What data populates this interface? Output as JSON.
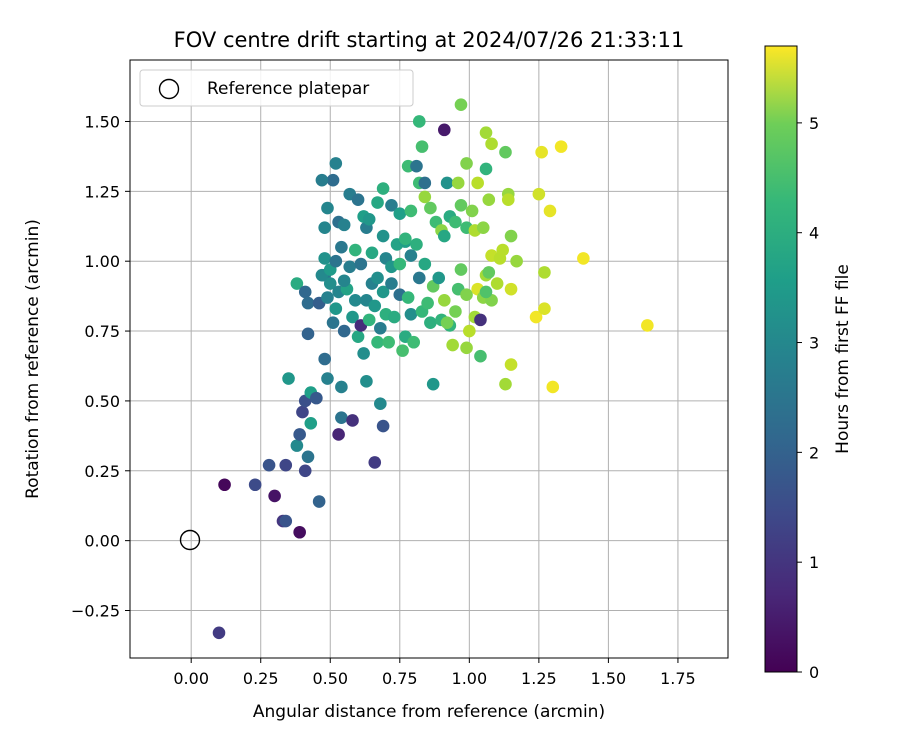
{
  "chart_data": {
    "type": "scatter",
    "title": "FOV centre drift starting at 2024/07/26 21:33:11",
    "xlabel": "Angular distance from reference (arcmin)",
    "ylabel": "Rotation from reference (arcmin)",
    "xlim": [
      -0.22,
      1.93
    ],
    "ylim": [
      -0.42,
      1.72
    ],
    "xticks": [
      "0.00",
      "0.25",
      "0.50",
      "0.75",
      "1.00",
      "1.25",
      "1.50",
      "1.75"
    ],
    "yticks": [
      "−0.25",
      "0.00",
      "0.25",
      "0.50",
      "0.75",
      "1.00",
      "1.25",
      "1.50"
    ],
    "grid": true,
    "legend": {
      "placement": "top-left",
      "entries": [
        "Reference platepar"
      ]
    },
    "reference_point": {
      "x": 0.0,
      "y": 0.0,
      "marker": "open circle"
    },
    "colorbar": {
      "label": "Hours from first FF file",
      "range": [
        0,
        5.7
      ],
      "ticks": [
        "0",
        "1",
        "2",
        "3",
        "4",
        "5"
      ],
      "colormap": "viridis"
    },
    "points": [
      [
        0.1,
        -0.33,
        1.0
      ],
      [
        0.12,
        0.2,
        0.1
      ],
      [
        0.23,
        0.2,
        1.3
      ],
      [
        0.28,
        0.27,
        1.5
      ],
      [
        0.3,
        0.16,
        0.3
      ],
      [
        0.33,
        0.07,
        0.9
      ],
      [
        0.34,
        0.07,
        1.5
      ],
      [
        0.34,
        0.27,
        1.2
      ],
      [
        0.39,
        0.03,
        0.2
      ],
      [
        0.41,
        0.25,
        1.2
      ],
      [
        0.42,
        0.3,
        2.2
      ],
      [
        0.38,
        0.34,
        2.7
      ],
      [
        0.39,
        0.38,
        1.6
      ],
      [
        0.4,
        0.46,
        1.2
      ],
      [
        0.41,
        0.5,
        1.4
      ],
      [
        0.43,
        0.42,
        3.2
      ],
      [
        0.43,
        0.53,
        3.2
      ],
      [
        0.45,
        0.51,
        1.6
      ],
      [
        0.46,
        0.14,
        1.8
      ],
      [
        0.35,
        0.58,
        3.0
      ],
      [
        0.48,
        0.65,
        2.0
      ],
      [
        0.49,
        0.58,
        2.5
      ],
      [
        0.53,
        0.38,
        0.6
      ],
      [
        0.54,
        0.44,
        2.2
      ],
      [
        0.54,
        0.55,
        2.5
      ],
      [
        0.58,
        0.43,
        0.8
      ],
      [
        0.63,
        0.57,
        2.8
      ],
      [
        0.66,
        0.28,
        1.0
      ],
      [
        0.68,
        0.49,
        2.7
      ],
      [
        0.69,
        0.41,
        1.5
      ],
      [
        0.42,
        0.74,
        1.8
      ],
      [
        0.38,
        0.92,
        3.5
      ],
      [
        0.41,
        0.89,
        1.9
      ],
      [
        0.42,
        0.85,
        2.0
      ],
      [
        0.46,
        0.85,
        1.7
      ],
      [
        0.48,
        0.95,
        2.3
      ],
      [
        0.49,
        0.87,
        2.5
      ],
      [
        0.5,
        0.92,
        2.8
      ],
      [
        0.51,
        0.78,
        2.2
      ],
      [
        0.52,
        0.83,
        3.0
      ],
      [
        0.53,
        0.89,
        2.6
      ],
      [
        0.55,
        0.75,
        1.9
      ],
      [
        0.56,
        0.9,
        3.3
      ],
      [
        0.58,
        0.8,
        3.0
      ],
      [
        0.59,
        0.86,
        2.7
      ],
      [
        0.6,
        0.73,
        3.4
      ],
      [
        0.61,
        0.77,
        0.7
      ],
      [
        0.62,
        0.67,
        2.8
      ],
      [
        0.63,
        0.86,
        2.6
      ],
      [
        0.64,
        0.79,
        3.7
      ],
      [
        0.65,
        0.92,
        2.5
      ],
      [
        0.66,
        0.84,
        3.0
      ],
      [
        0.67,
        0.71,
        3.8
      ],
      [
        0.68,
        0.76,
        2.4
      ],
      [
        0.69,
        0.89,
        3.0
      ],
      [
        0.7,
        0.81,
        3.6
      ],
      [
        0.71,
        0.71,
        3.9
      ],
      [
        0.72,
        0.92,
        2.4
      ],
      [
        0.73,
        0.8,
        3.5
      ],
      [
        0.75,
        0.88,
        2.1
      ],
      [
        0.76,
        0.68,
        4.0
      ],
      [
        0.77,
        0.73,
        3.5
      ],
      [
        0.78,
        0.87,
        3.8
      ],
      [
        0.79,
        0.81,
        2.8
      ],
      [
        0.8,
        0.71,
        3.9
      ],
      [
        0.82,
        0.94,
        2.3
      ],
      [
        0.83,
        0.82,
        3.8
      ],
      [
        0.84,
        0.99,
        3.4
      ],
      [
        0.86,
        0.78,
        3.6
      ],
      [
        0.87,
        0.56,
        3.0
      ],
      [
        0.47,
        0.95,
        2.7
      ],
      [
        0.48,
        1.01,
        2.9
      ],
      [
        0.5,
        0.97,
        3.1
      ],
      [
        0.52,
        1.0,
        2.2
      ],
      [
        0.54,
        1.05,
        2.3
      ],
      [
        0.55,
        0.93,
        2.6
      ],
      [
        0.57,
        0.98,
        2.4
      ],
      [
        0.59,
        1.04,
        3.7
      ],
      [
        0.61,
        0.99,
        2.2
      ],
      [
        0.63,
        1.12,
        2.4
      ],
      [
        0.65,
        1.03,
        3.4
      ],
      [
        0.67,
        0.94,
        2.8
      ],
      [
        0.69,
        1.09,
        2.9
      ],
      [
        0.7,
        1.01,
        2.6
      ],
      [
        0.72,
        0.98,
        3.0
      ],
      [
        0.74,
        1.06,
        3.3
      ],
      [
        0.75,
        0.99,
        3.8
      ],
      [
        0.77,
        1.07,
        3.2
      ],
      [
        0.79,
        1.02,
        2.5
      ],
      [
        0.81,
        1.06,
        3.6
      ],
      [
        0.48,
        1.12,
        2.6
      ],
      [
        0.49,
        1.19,
        2.6
      ],
      [
        0.51,
        1.29,
        2.0
      ],
      [
        0.53,
        1.14,
        2.1
      ],
      [
        0.55,
        1.13,
        2.5
      ],
      [
        0.57,
        1.24,
        2.4
      ],
      [
        0.6,
        1.22,
        2.2
      ],
      [
        0.62,
        1.16,
        3.2
      ],
      [
        0.64,
        1.15,
        3.0
      ],
      [
        0.67,
        1.21,
        3.4
      ],
      [
        0.69,
        1.26,
        3.6
      ],
      [
        0.72,
        1.2,
        2.4
      ],
      [
        0.75,
        1.17,
        3.2
      ],
      [
        0.77,
        1.08,
        3.7
      ],
      [
        0.79,
        1.18,
        3.9
      ],
      [
        0.47,
        1.29,
        2.4
      ],
      [
        0.52,
        1.35,
        2.5
      ],
      [
        0.78,
        1.34,
        3.9
      ],
      [
        0.81,
        1.34,
        2.2
      ],
      [
        0.82,
        1.28,
        3.9
      ],
      [
        0.83,
        1.41,
        4.0
      ],
      [
        0.82,
        1.5,
        3.8
      ],
      [
        0.84,
        1.28,
        2.1
      ],
      [
        0.91,
        1.47,
        0.4
      ],
      [
        0.92,
        1.28,
        2.9
      ],
      [
        0.97,
        1.56,
        4.5
      ],
      [
        0.96,
        1.28,
        4.8
      ],
      [
        0.99,
        1.35,
        4.6
      ],
      [
        1.03,
        1.28,
        5.1
      ],
      [
        1.06,
        1.46,
        4.9
      ],
      [
        1.08,
        1.42,
        5.0
      ],
      [
        1.13,
        1.39,
        4.3
      ],
      [
        1.06,
        1.33,
        3.7
      ],
      [
        1.26,
        1.39,
        5.5
      ],
      [
        1.33,
        1.41,
        5.6
      ],
      [
        0.84,
        1.23,
        4.8
      ],
      [
        0.86,
        1.19,
        4.3
      ],
      [
        0.88,
        1.14,
        3.9
      ],
      [
        0.9,
        1.11,
        4.7
      ],
      [
        0.91,
        1.09,
        3.4
      ],
      [
        0.93,
        1.16,
        3.5
      ],
      [
        0.95,
        1.14,
        3.9
      ],
      [
        0.97,
        1.2,
        4.3
      ],
      [
        0.99,
        1.12,
        3.9
      ],
      [
        1.01,
        1.18,
        4.6
      ],
      [
        1.02,
        1.11,
        5.0
      ],
      [
        1.05,
        1.12,
        4.7
      ],
      [
        1.07,
        1.22,
        4.8
      ],
      [
        1.08,
        1.02,
        5.2
      ],
      [
        1.11,
        1.01,
        5.1
      ],
      [
        1.14,
        1.24,
        4.8
      ],
      [
        1.14,
        1.22,
        5.1
      ],
      [
        1.15,
        1.09,
        4.6
      ],
      [
        1.17,
        1.0,
        4.8
      ],
      [
        1.25,
        1.24,
        5.3
      ],
      [
        1.29,
        1.18,
        5.5
      ],
      [
        1.27,
        0.96,
        5.0
      ],
      [
        1.41,
        1.01,
        5.6
      ],
      [
        1.64,
        0.77,
        5.6
      ],
      [
        1.3,
        0.55,
        5.6
      ],
      [
        0.85,
        0.85,
        3.9
      ],
      [
        0.87,
        0.91,
        4.3
      ],
      [
        0.89,
        0.94,
        3.0
      ],
      [
        0.91,
        0.86,
        4.8
      ],
      [
        0.93,
        0.77,
        3.7
      ],
      [
        0.95,
        0.82,
        4.5
      ],
      [
        0.96,
        0.9,
        4.0
      ],
      [
        0.97,
        0.97,
        4.3
      ],
      [
        0.99,
        0.88,
        4.6
      ],
      [
        1.0,
        0.75,
        5.1
      ],
      [
        1.02,
        0.8,
        4.9
      ],
      [
        1.03,
        0.9,
        5.4
      ],
      [
        1.04,
        0.79,
        0.8
      ],
      [
        1.05,
        0.87,
        4.7
      ],
      [
        1.06,
        0.95,
        4.9
      ],
      [
        1.07,
        0.96,
        4.3
      ],
      [
        1.08,
        0.86,
        4.6
      ],
      [
        1.1,
        0.92,
        5.0
      ],
      [
        1.12,
        1.04,
        5.1
      ],
      [
        1.15,
        0.9,
        5.3
      ],
      [
        0.9,
        0.79,
        3.7
      ],
      [
        0.92,
        0.78,
        4.5
      ],
      [
        0.94,
        0.7,
        4.9
      ],
      [
        0.99,
        0.69,
        4.8
      ],
      [
        1.04,
        0.66,
        4.0
      ],
      [
        1.13,
        0.56,
        4.9
      ],
      [
        1.15,
        0.63,
        5.2
      ],
      [
        1.24,
        0.8,
        5.6
      ],
      [
        1.27,
        0.83,
        5.4
      ],
      [
        1.06,
        0.89,
        4.1
      ]
    ]
  }
}
